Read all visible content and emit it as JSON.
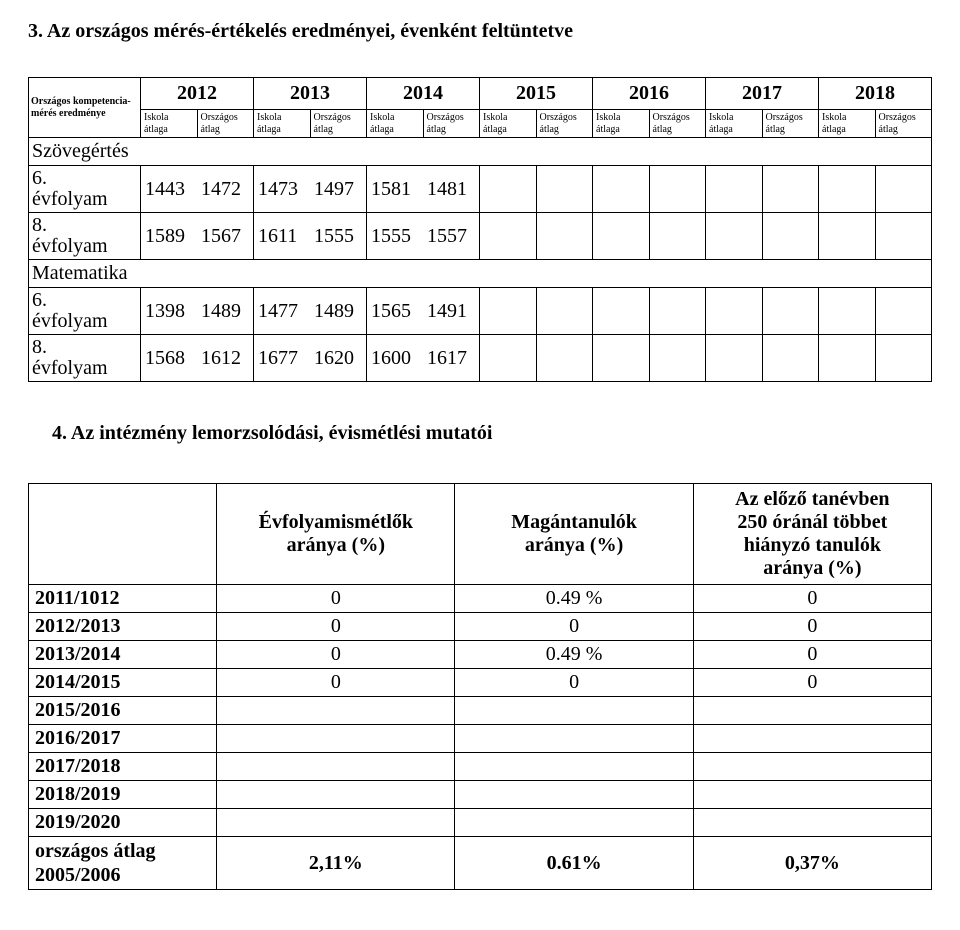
{
  "section3": {
    "title": "3. Az országos mérés-értékelés eredményei, évenként feltüntetve",
    "table": {
      "first_header": "Országos kompetencia-mérés eredménye",
      "sub_headers_pair": [
        "Iskola átlaga",
        "Országos átlag"
      ],
      "years": [
        "2012",
        "2013",
        "2014",
        "2015",
        "2016",
        "2017",
        "2018"
      ],
      "subjects": [
        {
          "name": "Szövegértés",
          "rows": [
            {
              "grade_top": "6.",
              "grade_bottom": "évfolyam",
              "values": [
                "1443",
                "1472",
                "1473",
                "1497",
                "1581",
                "1481",
                "",
                "",
                "",
                "",
                "",
                "",
                "",
                ""
              ]
            },
            {
              "grade_top": "8.",
              "grade_bottom": "évfolyam",
              "values": [
                "1589",
                "1567",
                "1611",
                "1555",
                "1555",
                "1557",
                "",
                "",
                "",
                "",
                "",
                "",
                "",
                ""
              ]
            }
          ]
        },
        {
          "name": "Matematika",
          "rows": [
            {
              "grade_top": "6.",
              "grade_bottom": "évfolyam",
              "values": [
                "1398",
                "1489",
                "1477",
                "1489",
                "1565",
                "1491",
                "",
                "",
                "",
                "",
                "",
                "",
                "",
                ""
              ]
            },
            {
              "grade_top": "8.",
              "grade_bottom": "évfolyam",
              "values": [
                "1568",
                "1612",
                "1677",
                "1620",
                "1600",
                "1617",
                "",
                "",
                "",
                "",
                "",
                "",
                "",
                ""
              ]
            }
          ]
        }
      ]
    }
  },
  "section4": {
    "title": "4. Az intézmény lemorzsolódási, évismétlési mutatói",
    "columns": [
      "Évfolyamismétlők aránya (%)",
      "Magántanulók aránya (%)",
      "Az előző tanévben 250 óránál többet hiányzó tanulók aránya (%)"
    ],
    "rows": [
      {
        "label": "2011/1012",
        "vals": [
          "0",
          "0.49 %",
          "0"
        ]
      },
      {
        "label": "2012/2013",
        "vals": [
          "0",
          "0",
          "0"
        ]
      },
      {
        "label": "2013/2014",
        "vals": [
          "0",
          "0.49 %",
          "0"
        ]
      },
      {
        "label": "2014/2015",
        "vals": [
          "0",
          "0",
          "0"
        ]
      },
      {
        "label": "2015/2016",
        "vals": [
          "",
          "",
          ""
        ]
      },
      {
        "label": "2016/2017",
        "vals": [
          "",
          "",
          ""
        ]
      },
      {
        "label": "2017/2018",
        "vals": [
          "",
          "",
          ""
        ]
      },
      {
        "label": "2018/2019",
        "vals": [
          "",
          "",
          ""
        ]
      },
      {
        "label": "2019/2020",
        "vals": [
          "",
          "",
          ""
        ]
      }
    ],
    "footer": {
      "label_top": "országos átlag",
      "label_bottom": "2005/2006",
      "vals": [
        "2,11%",
        "0.61%",
        "0,37%"
      ]
    }
  }
}
